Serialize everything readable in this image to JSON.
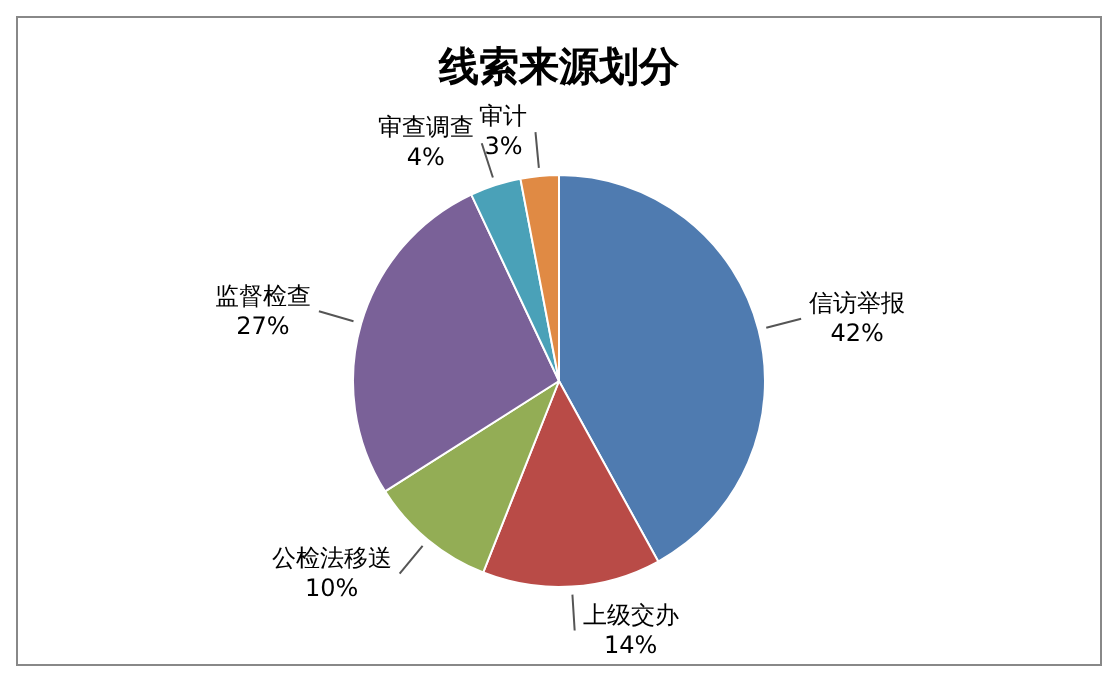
{
  "chart_data": {
    "type": "pie",
    "title": "线索来源划分",
    "categories": [
      "信访举报",
      "上级交办",
      "公检法移送",
      "监督检查",
      "审查调查",
      "审计"
    ],
    "values": [
      42,
      14,
      10,
      27,
      4,
      3
    ],
    "colors": [
      "#4f7bb0",
      "#b94b47",
      "#93ad55",
      "#7a6198",
      "#4aa1b8",
      "#e08a44"
    ],
    "value_labels": [
      "42%",
      "14%",
      "10%",
      "27%",
      "4%",
      "3%"
    ],
    "legend": false
  }
}
